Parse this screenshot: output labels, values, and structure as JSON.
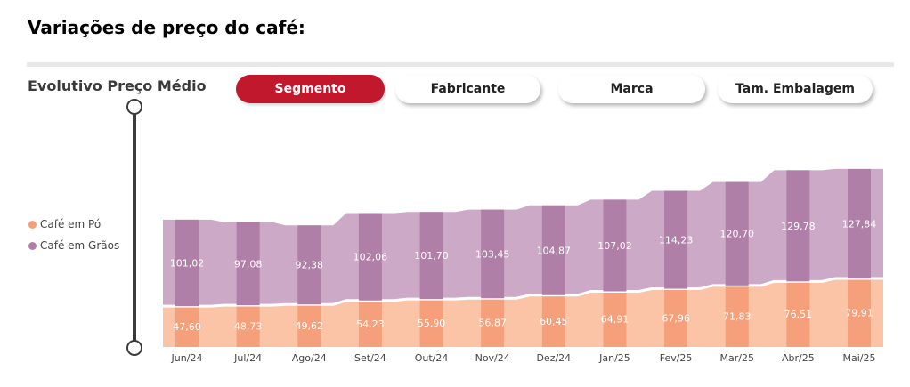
{
  "page": {
    "title": "Variações de preço do café:"
  },
  "card": {
    "title": "Evolutivo Preço Médio"
  },
  "slicer": {
    "buttons": [
      {
        "label": "Segmento",
        "active": true
      },
      {
        "label": "Fabricante",
        "active": false
      },
      {
        "label": "Marca",
        "active": false
      },
      {
        "label": "Tam. Embalagem",
        "active": false
      }
    ]
  },
  "colors": {
    "accent": "#c1182d",
    "po_bar": "#f5a07a",
    "po_area": "#fbc4a6",
    "graos_bar": "#b07fa8",
    "graos_area": "#cda9c8",
    "label": "#ffffff",
    "axis_text": "#444444"
  },
  "chart_data": {
    "type": "area",
    "stacked": true,
    "categories": [
      "Jun/24",
      "Jul/24",
      "Ago/24",
      "Set/24",
      "Out/24",
      "Nov/24",
      "Dez/24",
      "Jan/25",
      "Fev/25",
      "Mar/25",
      "Abr/25",
      "Mai/25"
    ],
    "series": [
      {
        "name": "Café em Pó",
        "values": [
          47.6,
          48.73,
          49.62,
          54.23,
          55.9,
          56.87,
          60.45,
          64.91,
          67.96,
          71.83,
          76.51,
          79.91
        ],
        "labels": [
          "47,60",
          "48,73",
          "49,62",
          "54,23",
          "55,90",
          "56,87",
          "60,45",
          "64,91",
          "67,96",
          "71,83",
          "76,51",
          "79,91"
        ]
      },
      {
        "name": "Café em Grãos",
        "values": [
          101.02,
          97.08,
          92.38,
          102.06,
          101.7,
          103.45,
          104.87,
          107.02,
          114.23,
          120.7,
          129.78,
          127.84
        ],
        "labels": [
          "101,02",
          "97,08",
          "92,38",
          "102,06",
          "101,70",
          "103,45",
          "104,87",
          "107,02",
          "114,23",
          "120,70",
          "129,78",
          "127,84"
        ]
      }
    ],
    "title": "Evolutivo Preço Médio",
    "xlabel": "",
    "ylabel": "",
    "legend_position": "left",
    "grid": false,
    "y_axis_visible": false
  }
}
